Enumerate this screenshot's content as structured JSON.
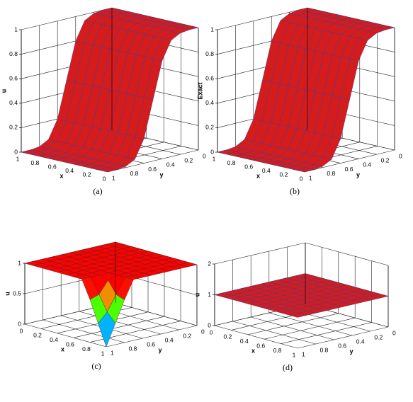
{
  "chart_data": [
    {
      "type": "surface",
      "caption": "(a)",
      "xlabel": "x",
      "ylabel": "y",
      "zlabel": "u",
      "x": [
        0,
        0.1,
        0.2,
        0.3,
        0.4,
        0.5,
        0.6,
        0.7,
        0.8,
        0.9,
        1
      ],
      "y": [
        0,
        0.1,
        0.2,
        0.3,
        0.4,
        0.5,
        0.6,
        0.7,
        0.8,
        0.9,
        1
      ],
      "z": [
        [
          1,
          1,
          0.99,
          0.95,
          0.8,
          0.5,
          0.2,
          0.05,
          0.01,
          0,
          0
        ],
        [
          1,
          1,
          0.99,
          0.95,
          0.8,
          0.5,
          0.2,
          0.05,
          0.01,
          0,
          0
        ],
        [
          1,
          1,
          0.99,
          0.95,
          0.8,
          0.5,
          0.2,
          0.05,
          0.01,
          0,
          0
        ],
        [
          1,
          1,
          0.99,
          0.95,
          0.8,
          0.5,
          0.2,
          0.05,
          0.01,
          0,
          0
        ],
        [
          1,
          1,
          0.99,
          0.95,
          0.8,
          0.5,
          0.2,
          0.05,
          0.01,
          0,
          0
        ],
        [
          1,
          1,
          0.99,
          0.95,
          0.8,
          0.5,
          0.2,
          0.05,
          0.01,
          0,
          0
        ],
        [
          1,
          1,
          0.99,
          0.95,
          0.8,
          0.5,
          0.2,
          0.05,
          0.01,
          0,
          0
        ],
        [
          1,
          1,
          0.99,
          0.95,
          0.8,
          0.5,
          0.2,
          0.05,
          0.01,
          0,
          0
        ],
        [
          1,
          1,
          0.99,
          0.95,
          0.8,
          0.5,
          0.2,
          0.05,
          0.01,
          0,
          0
        ],
        [
          1,
          1,
          0.99,
          0.95,
          0.8,
          0.5,
          0.2,
          0.05,
          0.01,
          0,
          0
        ],
        [
          1,
          1,
          0.99,
          0.95,
          0.8,
          0.5,
          0.2,
          0.05,
          0.01,
          0,
          0
        ]
      ],
      "xlim": [
        0,
        1
      ],
      "ylim": [
        0,
        1
      ],
      "zlim": [
        0,
        1
      ],
      "xticks": [
        0,
        0.2,
        0.4,
        0.6,
        0.8,
        1
      ],
      "yticks": [
        0,
        0.2,
        0.4,
        0.6,
        0.8,
        1
      ],
      "zticks": [
        0,
        0.2,
        0.4,
        0.6,
        0.8,
        1
      ],
      "color": "#d41c1c",
      "edgecolor": "#3a3a9a"
    },
    {
      "type": "surface",
      "caption": "(b)",
      "xlabel": "x",
      "ylabel": "y",
      "zlabel": "Exact",
      "x": [
        0,
        0.1,
        0.2,
        0.3,
        0.4,
        0.5,
        0.6,
        0.7,
        0.8,
        0.9,
        1
      ],
      "y": [
        0,
        0.1,
        0.2,
        0.3,
        0.4,
        0.5,
        0.6,
        0.7,
        0.8,
        0.9,
        1
      ],
      "z": [
        [
          1,
          1,
          0.99,
          0.95,
          0.8,
          0.5,
          0.2,
          0.05,
          0.01,
          0,
          0
        ],
        [
          1,
          1,
          0.99,
          0.95,
          0.8,
          0.5,
          0.2,
          0.05,
          0.01,
          0,
          0
        ],
        [
          1,
          1,
          0.99,
          0.95,
          0.8,
          0.5,
          0.2,
          0.05,
          0.01,
          0,
          0
        ],
        [
          1,
          1,
          0.99,
          0.95,
          0.8,
          0.5,
          0.2,
          0.05,
          0.01,
          0,
          0
        ],
        [
          1,
          1,
          0.99,
          0.95,
          0.8,
          0.5,
          0.2,
          0.05,
          0.01,
          0,
          0
        ],
        [
          1,
          1,
          0.99,
          0.95,
          0.8,
          0.5,
          0.2,
          0.05,
          0.01,
          0,
          0
        ],
        [
          1,
          1,
          0.99,
          0.95,
          0.8,
          0.5,
          0.2,
          0.05,
          0.01,
          0,
          0
        ],
        [
          1,
          1,
          0.99,
          0.95,
          0.8,
          0.5,
          0.2,
          0.05,
          0.01,
          0,
          0
        ],
        [
          1,
          1,
          0.99,
          0.95,
          0.8,
          0.5,
          0.2,
          0.05,
          0.01,
          0,
          0
        ],
        [
          1,
          1,
          0.99,
          0.95,
          0.8,
          0.5,
          0.2,
          0.05,
          0.01,
          0,
          0
        ],
        [
          1,
          1,
          0.99,
          0.95,
          0.8,
          0.5,
          0.2,
          0.05,
          0.01,
          0,
          0
        ]
      ],
      "xlim": [
        0,
        1
      ],
      "ylim": [
        0,
        1
      ],
      "zlim": [
        0,
        1
      ],
      "xticks": [
        0,
        0.2,
        0.4,
        0.6,
        0.8,
        1
      ],
      "yticks": [
        0,
        0.2,
        0.4,
        0.6,
        0.8,
        1
      ],
      "zticks": [
        0,
        0.2,
        0.4,
        0.6,
        0.8,
        1
      ],
      "color": "#d41c1c",
      "edgecolor": "#3a3a9a"
    },
    {
      "type": "surface",
      "caption": "(c)",
      "xlabel": "x",
      "ylabel": "y",
      "zlabel": "u",
      "x": [
        0,
        0.1,
        0.2,
        0.3,
        0.4,
        0.5,
        0.6,
        0.7,
        0.8,
        0.9,
        1
      ],
      "y": [
        0,
        0.1,
        0.2,
        0.3,
        0.4,
        0.5,
        0.6,
        0.7,
        0.8,
        0.9,
        1
      ],
      "z": [
        [
          1,
          1,
          1,
          1,
          1,
          1,
          1,
          1,
          1,
          1,
          1
        ],
        [
          1,
          1,
          1,
          1,
          1,
          1,
          1,
          1,
          1,
          1,
          1
        ],
        [
          1,
          1,
          1,
          1,
          1,
          1,
          1,
          1,
          1,
          1,
          1
        ],
        [
          1,
          1,
          1,
          1,
          1,
          1,
          1,
          1,
          1,
          1,
          1
        ],
        [
          1,
          1,
          1,
          1,
          1,
          1,
          1,
          1,
          1,
          1,
          1
        ],
        [
          1,
          1,
          1,
          1,
          1,
          1,
          1,
          1,
          1,
          1,
          1
        ],
        [
          1,
          1,
          1,
          1,
          1,
          1,
          1,
          1,
          1,
          1,
          1
        ],
        [
          1,
          1,
          1,
          1,
          1,
          1,
          1,
          1,
          1,
          1,
          1
        ],
        [
          1,
          1,
          1,
          1,
          1,
          1,
          1,
          1,
          0.95,
          0.75,
          0.7
        ],
        [
          1,
          1,
          1,
          1,
          1,
          1,
          1,
          1,
          0.75,
          0.5,
          0.35
        ],
        [
          1,
          1,
          1,
          1,
          1,
          1,
          1,
          1,
          0.7,
          0.35,
          0
        ]
      ],
      "xlim": [
        0,
        1
      ],
      "ylim": [
        0,
        1
      ],
      "zlim": [
        0,
        1
      ],
      "xticks": [
        0,
        0.2,
        0.4,
        0.6,
        0.8,
        1
      ],
      "yticks": [
        0,
        0.2,
        0.4,
        0.6,
        0.8,
        1
      ],
      "zticks": [
        0,
        0.5,
        1
      ],
      "colormap": "jet",
      "edgecolor": "#3a2a2a"
    },
    {
      "type": "surface",
      "caption": "(d)",
      "xlabel": "x",
      "ylabel": "y",
      "zlabel": "u",
      "x": [
        0,
        0.1,
        0.2,
        0.3,
        0.4,
        0.5,
        0.6,
        0.7,
        0.8,
        0.9,
        1
      ],
      "y": [
        0,
        0.1,
        0.2,
        0.3,
        0.4,
        0.5,
        0.6,
        0.7,
        0.8,
        0.9,
        1
      ],
      "z": [
        [
          1,
          1,
          1,
          1,
          1,
          1,
          1,
          1,
          1,
          1,
          1
        ],
        [
          1,
          1,
          1,
          1,
          1,
          1,
          1,
          1,
          1,
          1,
          1
        ],
        [
          1,
          1,
          1,
          1,
          1,
          1,
          1,
          1,
          1,
          1,
          1
        ],
        [
          1,
          1,
          1,
          1,
          1,
          1,
          1,
          1,
          1,
          1,
          1
        ],
        [
          1,
          1,
          1,
          1,
          1,
          1,
          1,
          1,
          1,
          1,
          1
        ],
        [
          1,
          1,
          1,
          1,
          1,
          1,
          1,
          1,
          1,
          1,
          1
        ],
        [
          1,
          1,
          1,
          1,
          1,
          1,
          1,
          1,
          1,
          1,
          1
        ],
        [
          1,
          1,
          1,
          1,
          1,
          1,
          1,
          1,
          1,
          1,
          1
        ],
        [
          1,
          1,
          1,
          1,
          1,
          1,
          1,
          1,
          1,
          1,
          1
        ],
        [
          1,
          1,
          1,
          1,
          1,
          1,
          1,
          1,
          1,
          1,
          1
        ],
        [
          1,
          1,
          1,
          1,
          1,
          1,
          1,
          1,
          1,
          1,
          1
        ]
      ],
      "xlim": [
        0,
        1
      ],
      "ylim": [
        0,
        1
      ],
      "zlim": [
        0,
        2
      ],
      "xticks": [
        0,
        0.2,
        0.4,
        0.6,
        0.8,
        1
      ],
      "yticks": [
        0,
        0.2,
        0.4,
        0.6,
        0.8,
        1
      ],
      "zticks": [
        0,
        1,
        2
      ],
      "color": "#d41c1c",
      "edgecolor": "#3a3a9a"
    }
  ]
}
